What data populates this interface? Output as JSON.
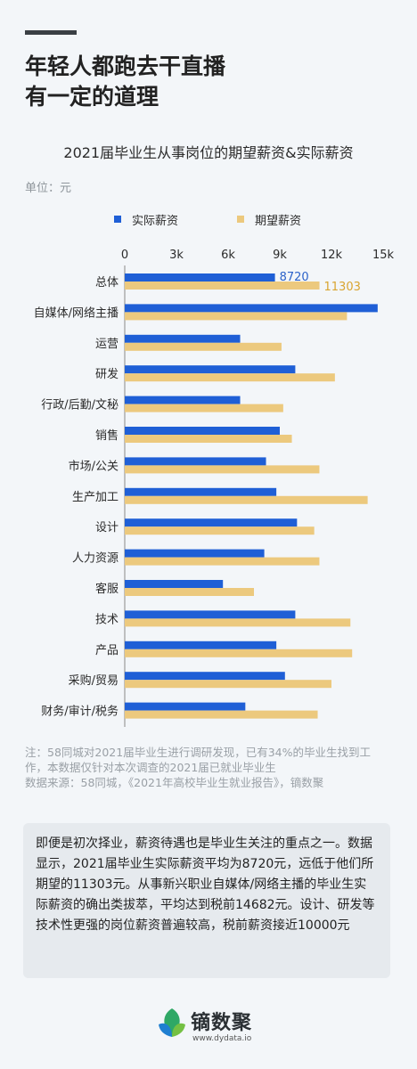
{
  "header": {
    "title_line1": "年轻人都跑去干直播",
    "title_line2": "有一定的道理"
  },
  "unit_label": "单位：元",
  "colors": {
    "actual": "#1f5fd6",
    "expected": "#ecc97e",
    "actual_label": "#2d63c9",
    "expected_label": "#d9a531"
  },
  "chart_data": {
    "type": "bar",
    "orientation": "horizontal",
    "title": "2021届毕业生从事岗位的期望薪资&实际薪资",
    "categories": [
      "总体",
      "自媒体/网络主播",
      "运营",
      "研发",
      "行政/后勤/文秘",
      "销售",
      "市场/公关",
      "生产加工",
      "设计",
      "人力资源",
      "客服",
      "技术",
      "产品",
      "采购/贸易",
      "财务/审计/税务"
    ],
    "series": [
      {
        "name": "实际薪资",
        "values": [
          8720,
          14682,
          6700,
          9900,
          6700,
          9000,
          8200,
          8800,
          10000,
          8100,
          5700,
          9900,
          8800,
          9300,
          7000
        ]
      },
      {
        "name": "期望薪资",
        "values": [
          11303,
          12900,
          9100,
          12200,
          9200,
          9700,
          11300,
          14100,
          11000,
          11300,
          7500,
          13100,
          13200,
          12000,
          11200
        ]
      }
    ],
    "data_labels": {
      "actual": "8720",
      "expected": "11303"
    },
    "x_ticks": [
      {
        "value": 0,
        "label": "0"
      },
      {
        "value": 3000,
        "label": "3k"
      },
      {
        "value": 6000,
        "label": "6k"
      },
      {
        "value": 9000,
        "label": "9k"
      },
      {
        "value": 12000,
        "label": "12k"
      },
      {
        "value": 15000,
        "label": "15k"
      }
    ],
    "xlim": [
      0,
      15000
    ],
    "legend": "top-left",
    "grid": false
  },
  "notes": {
    "line1": "注：58同城对2021届毕业生进行调研发现，已有34%的毕业生找到工",
    "line2": "作，本数据仅针对本次调查的2021届已就业毕业生",
    "line3": "数据来源：58同城，《2021年高校毕业生就业报告》，镝数聚"
  },
  "summary": {
    "text": "即便是初次择业，薪资待遇也是毕业生关注的重点之一。数据显示，2021届毕业生实际薪资平均为8720元，远低于他们所期望的11303元。从事新兴职业自媒体/网络主播的毕业生实际薪资的确出类拔萃，平均达到税前14682元。设计、研发等技术性更强的岗位薪资普遍较高，税前薪资接近10000元"
  },
  "footer": {
    "logo_name": "镝数聚",
    "logo_url": "www.dydata.io",
    "logo_icon": "leaf-logo-icon"
  }
}
